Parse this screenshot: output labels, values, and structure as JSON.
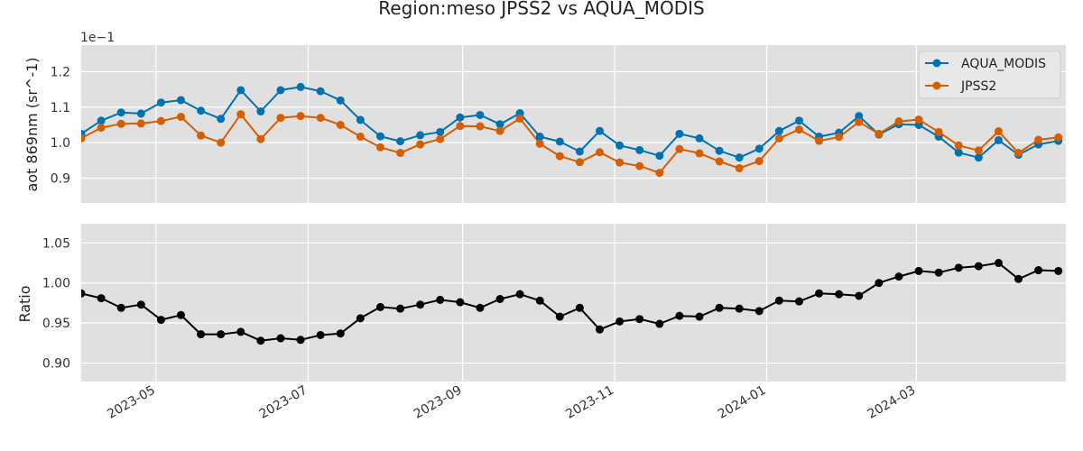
{
  "chart_data": {
    "title": "Region:meso JPSS2 vs AQUA_MODIS",
    "x_tick_labels": [
      "2023-05",
      "2023-07",
      "2023-09",
      "2023-11",
      "2024-01",
      "2024-03"
    ],
    "x_tick_dates": [
      "2023-05-01",
      "2023-07-01",
      "2023-09-01",
      "2023-11-01",
      "2024-01-01",
      "2024-03-01"
    ],
    "xlim": [
      "2023-04-01",
      "2024-04-30"
    ],
    "x": [
      "2023-04-01",
      "2023-04-09",
      "2023-04-17",
      "2023-04-25",
      "2023-05-03",
      "2023-05-11",
      "2023-05-19",
      "2023-05-27",
      "2023-06-04",
      "2023-06-12",
      "2023-06-20",
      "2023-06-28",
      "2023-07-06",
      "2023-07-14",
      "2023-07-22",
      "2023-07-30",
      "2023-08-07",
      "2023-08-15",
      "2023-08-23",
      "2023-08-31",
      "2023-09-08",
      "2023-09-16",
      "2023-09-24",
      "2023-10-02",
      "2023-10-10",
      "2023-10-18",
      "2023-10-26",
      "2023-11-03",
      "2023-11-11",
      "2023-11-19",
      "2023-11-27",
      "2023-12-05",
      "2023-12-13",
      "2023-12-21",
      "2023-12-29",
      "2024-01-06",
      "2024-01-14",
      "2024-01-22",
      "2024-01-30",
      "2024-02-07",
      "2024-02-15",
      "2024-02-23",
      "2024-03-02",
      "2024-03-10",
      "2024-03-18",
      "2024-03-26",
      "2024-04-03",
      "2024-04-11",
      "2024-04-19",
      "2024-04-27"
    ],
    "panels": [
      {
        "type": "line",
        "ylabel": "aot 869nm (sr^-1)",
        "offset_text": "1e−1",
        "ylim": [
          0.083,
          0.1275
        ],
        "y_ticks": [
          0.09,
          0.1,
          0.11,
          0.12
        ],
        "y_tick_labels": [
          "0.9",
          "1.0",
          "1.1",
          "1.2"
        ],
        "grid": true,
        "legend_position": "top-right",
        "series": [
          {
            "name": "AQUA_MODIS",
            "color": "#0072B2",
            "values": [
              0.1025,
              0.1062,
              0.1085,
              0.1082,
              0.1113,
              0.112,
              0.109,
              0.1067,
              0.1148,
              0.1088,
              0.1148,
              0.1157,
              0.1145,
              0.1119,
              0.1064,
              0.1018,
              0.1004,
              0.1021,
              0.103,
              0.1071,
              0.1078,
              0.1052,
              0.1083,
              0.1017,
              0.1003,
              0.0975,
              0.1033,
              0.0992,
              0.0979,
              0.0963,
              0.1025,
              0.1012,
              0.0977,
              0.0958,
              0.0983,
              0.1033,
              0.1062,
              0.1017,
              0.1028,
              0.1075,
              0.1023,
              0.1052,
              0.105,
              0.1017,
              0.0972,
              0.0958,
              0.1007,
              0.0966,
              0.0995,
              0.1005
            ]
          },
          {
            "name": "JPSS2",
            "color": "#D55E00",
            "values": [
              0.1012,
              0.1042,
              0.1053,
              0.1054,
              0.1061,
              0.1073,
              0.102,
              0.1,
              0.108,
              0.101,
              0.107,
              0.1075,
              0.107,
              0.105,
              0.1017,
              0.0987,
              0.0971,
              0.0995,
              0.101,
              0.1047,
              0.1046,
              0.1033,
              0.1068,
              0.0997,
              0.0962,
              0.0945,
              0.0973,
              0.0944,
              0.0934,
              0.0915,
              0.0982,
              0.097,
              0.0947,
              0.0928,
              0.0948,
              0.1012,
              0.1037,
              0.1005,
              0.1016,
              0.1058,
              0.1025,
              0.106,
              0.1065,
              0.103,
              0.0992,
              0.0978,
              0.1032,
              0.0971,
              0.1008,
              0.1015
            ]
          }
        ]
      },
      {
        "type": "line",
        "ylabel": "Ratio",
        "ylim": [
          0.877,
          1.074
        ],
        "y_ticks": [
          0.9,
          0.95,
          1.0,
          1.05
        ],
        "y_tick_labels": [
          "0.90",
          "0.95",
          "1.00",
          "1.05"
        ],
        "grid": true,
        "series": [
          {
            "color": "#000000",
            "values": [
              0.987,
              0.981,
              0.969,
              0.973,
              0.954,
              0.96,
              0.936,
              0.936,
              0.939,
              0.928,
              0.931,
              0.929,
              0.935,
              0.937,
              0.956,
              0.97,
              0.968,
              0.973,
              0.979,
              0.976,
              0.969,
              0.98,
              0.986,
              0.978,
              0.958,
              0.969,
              0.942,
              0.952,
              0.955,
              0.949,
              0.959,
              0.958,
              0.969,
              0.968,
              0.965,
              0.978,
              0.977,
              0.987,
              0.986,
              0.984,
              1.0,
              1.008,
              1.015,
              1.013,
              1.019,
              1.021,
              1.025,
              1.005,
              1.016,
              1.015
            ]
          }
        ]
      }
    ]
  }
}
